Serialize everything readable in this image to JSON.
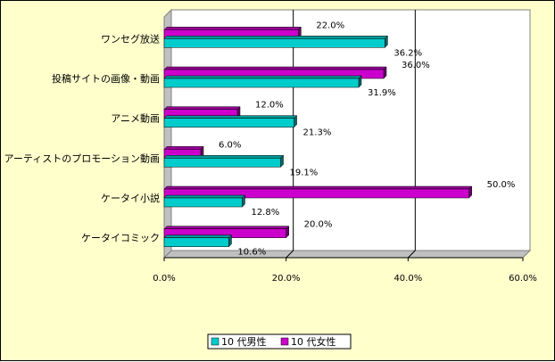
{
  "chart_data": {
    "type": "bar",
    "orientation": "horizontal",
    "categories": [
      "ワンセグ放送",
      "投稿サイトの画像・動画",
      "アニメ動画",
      "アーティストのプロモーション動画",
      "ケータイ小説",
      "ケータイコミック"
    ],
    "series": [
      {
        "name": "10 代男性",
        "values": [
          36.2,
          31.9,
          21.3,
          19.1,
          12.8,
          10.6
        ],
        "labels": [
          "36.2%",
          "31.9%",
          "21.3%",
          "19.1%",
          "12.8%",
          "10.6%"
        ],
        "color": "#00cccc"
      },
      {
        "name": "10 代女性",
        "values": [
          22.0,
          36.0,
          12.0,
          6.0,
          50.0,
          20.0
        ],
        "labels": [
          "22.0%",
          "36.0%",
          "12.0%",
          "6.0%",
          "50.0%",
          "20.0%"
        ],
        "color": "#cc00cc"
      }
    ],
    "xlim": [
      0,
      60
    ],
    "xticks": [
      "0.0%",
      "20.0%",
      "40.0%",
      "60.0%"
    ],
    "grid": true,
    "legend": "bottom",
    "title": "",
    "xlabel": "",
    "ylabel": ""
  }
}
